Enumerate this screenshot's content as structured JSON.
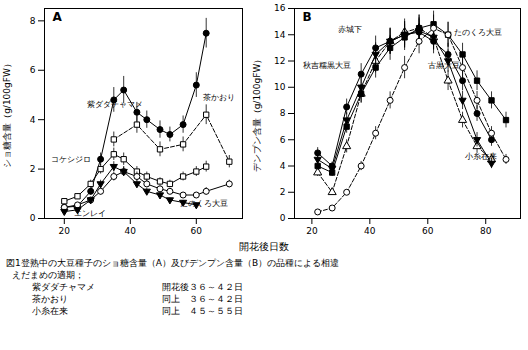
{
  "chart_data": [
    {
      "type": "line",
      "title": "A",
      "ylabel": "ショ糖含量（g/100gFW）",
      "xlim": [
        14,
        74
      ],
      "ylim": [
        0,
        8.5
      ],
      "xticks": [
        20,
        40,
        60
      ],
      "yticks": [
        0,
        2,
        4,
        6,
        8
      ],
      "series": [
        {
          "name": "紫ダダチャマメ",
          "color": "black",
          "marker": "filled_circle",
          "line_style": "solid",
          "x": [
            20,
            24,
            28,
            31,
            35,
            38,
            42,
            45,
            49,
            52,
            56,
            60,
            63
          ],
          "values": [
            0.45,
            0.5,
            1.1,
            2.4,
            4.8,
            5.2,
            4.3,
            4.0,
            3.6,
            3.4,
            3.8,
            5.4,
            7.5
          ],
          "yerr": [
            0.1,
            0.1,
            0.15,
            0.25,
            0.5,
            0.55,
            0.4,
            0.35,
            0.35,
            0.3,
            0.35,
            0.5,
            0.6
          ]
        },
        {
          "name": "茶かおり",
          "color": "black",
          "marker": "open_square",
          "line_style": "dashed",
          "x": [
            35,
            42,
            49,
            56,
            63,
            70
          ],
          "values": [
            3.2,
            3.8,
            2.8,
            3.0,
            4.2,
            2.3
          ],
          "yerr": [
            0.3,
            0.35,
            0.3,
            0.3,
            0.4,
            0.25
          ]
        },
        {
          "name": "コケシジロ",
          "color": "black",
          "marker": "open_square",
          "line_style": "solid",
          "x": [
            20,
            24,
            28,
            31,
            35,
            38,
            42,
            45,
            49,
            52,
            56,
            60,
            63
          ],
          "values": [
            0.7,
            0.9,
            1.4,
            2.0,
            2.6,
            2.4,
            1.9,
            1.7,
            1.5,
            1.4,
            1.7,
            1.9,
            2.1
          ],
          "yerr": [
            0.1,
            0.1,
            0.15,
            0.2,
            0.25,
            0.25,
            0.2,
            0.18,
            0.15,
            0.15,
            0.18,
            0.2,
            0.22
          ]
        },
        {
          "name": "たのくろ大豆",
          "color": "black",
          "marker": "open_circle",
          "line_style": "solid",
          "x": [
            20,
            24,
            28,
            31,
            35,
            38,
            42,
            45,
            49,
            52,
            56,
            60,
            63,
            70
          ],
          "values": [
            0.45,
            0.55,
            0.75,
            1.1,
            1.7,
            1.9,
            1.7,
            1.4,
            1.2,
            1.1,
            0.95,
            0.95,
            1.1,
            1.4
          ],
          "yerr": [
            0.08,
            0.08,
            0.1,
            0.15,
            0.18,
            0.2,
            0.18,
            0.15,
            0.12,
            0.12,
            0.1,
            0.1,
            0.15,
            0.15
          ]
        },
        {
          "name": "エンレイ",
          "color": "black",
          "marker": "filled_triangle_down",
          "line_style": "solid",
          "x": [
            20,
            24,
            28,
            31,
            35,
            38,
            42,
            45,
            49,
            52,
            56,
            60
          ],
          "values": [
            0.28,
            0.35,
            0.75,
            1.4,
            2.1,
            1.9,
            1.4,
            1.1,
            0.95,
            0.75,
            0.65,
            0.55
          ],
          "yerr": [
            0.05,
            0.05,
            0.08,
            0.15,
            0.2,
            0.18,
            0.15,
            0.12,
            0.1,
            0.08,
            0.08,
            0.07
          ]
        }
      ],
      "annotations": [
        {
          "text": "紫ダダチャマメ",
          "x": 27,
          "y": 4.5
        },
        {
          "text": "茶かおり",
          "x": 62,
          "y": 4.8
        },
        {
          "text": "コケシジロ",
          "x": 16,
          "y": 2.3
        },
        {
          "text": "たのくろ大豆",
          "x": 55,
          "y": 0.5
        },
        {
          "text": "エンレイ",
          "x": 23,
          "y": 0.1
        }
      ]
    },
    {
      "type": "line",
      "title": "B",
      "ylabel": "デンプン含量（g/100gFW）",
      "xlim": [
        14,
        92
      ],
      "ylim": [
        0,
        16
      ],
      "xticks": [
        20,
        40,
        60,
        80
      ],
      "yticks": [
        0,
        2,
        4,
        6,
        8,
        10,
        12,
        14,
        16
      ],
      "series": [
        {
          "name": "赤城下",
          "color": "black",
          "marker": "open_triangle_up",
          "line_style": "dashed",
          "x": [
            22,
            27,
            32,
            37,
            42,
            47,
            52,
            57,
            62,
            67,
            72,
            77,
            82
          ],
          "values": [
            3.5,
            2.0,
            5.5,
            9.5,
            12.0,
            13.5,
            14.2,
            14.5,
            13.8,
            10.5,
            7.5,
            5.5,
            4.5
          ],
          "yerr": [
            0.3,
            0.2,
            0.5,
            0.7,
            0.9,
            1.0,
            1.0,
            1.0,
            0.95,
            0.75,
            0.6,
            0.5,
            0.4
          ]
        },
        {
          "name": "秋吉糯黒大豆",
          "color": "black",
          "marker": "filled_circle",
          "line_style": "solid",
          "x": [
            22,
            27,
            32,
            37,
            42,
            47,
            52,
            57,
            62,
            67,
            72,
            77,
            82
          ],
          "values": [
            5.0,
            4.0,
            8.5,
            11.0,
            13.0,
            13.5,
            14.0,
            14.2,
            13.5,
            12.5,
            10.5,
            8.0,
            6.0
          ],
          "yerr": [
            0.4,
            0.3,
            0.6,
            0.8,
            0.9,
            1.0,
            1.0,
            1.0,
            0.95,
            0.85,
            0.75,
            0.6,
            0.5
          ]
        },
        {
          "name": "たのくろ大豆",
          "color": "black",
          "marker": "filled_square",
          "line_style": "solid",
          "x": [
            22,
            27,
            32,
            37,
            42,
            47,
            52,
            57,
            62,
            67,
            72,
            77,
            82,
            87
          ],
          "values": [
            4.0,
            3.5,
            7.0,
            9.5,
            11.5,
            13.0,
            13.8,
            14.5,
            14.8,
            14.0,
            12.5,
            10.5,
            9.0,
            7.5
          ],
          "yerr": [
            0.3,
            0.3,
            0.5,
            0.7,
            0.8,
            0.95,
            1.0,
            1.0,
            1.0,
            0.95,
            0.85,
            0.75,
            0.65,
            0.6
          ]
        },
        {
          "name": "古黒大豆",
          "color": "black",
          "marker": "filled_triangle_down",
          "line_style": "solid",
          "x": [
            22,
            27,
            32,
            37,
            42,
            47,
            52,
            57,
            62,
            67,
            72,
            77,
            82
          ],
          "values": [
            4.5,
            3.8,
            7.5,
            10.0,
            12.5,
            13.5,
            14.0,
            14.3,
            13.8,
            12.0,
            9.0,
            6.0,
            4.2
          ],
          "yerr": [
            0.35,
            0.3,
            0.55,
            0.75,
            0.88,
            0.95,
            1.0,
            1.0,
            0.95,
            0.85,
            0.7,
            0.55,
            0.4
          ]
        },
        {
          "name": "小糸在来",
          "color": "black",
          "marker": "open_circle",
          "line_style": "dashed",
          "x": [
            22,
            27,
            32,
            37,
            42,
            47,
            52,
            57,
            62,
            67,
            72,
            77,
            82,
            87
          ],
          "values": [
            0.5,
            0.8,
            2.0,
            4.0,
            6.5,
            9.0,
            11.5,
            13.5,
            14.5,
            14.0,
            11.5,
            9.0,
            6.5,
            4.5
          ],
          "yerr": [
            0.1,
            0.1,
            0.2,
            0.35,
            0.5,
            0.65,
            0.85,
            0.95,
            1.0,
            0.95,
            0.82,
            0.68,
            0.5,
            0.38
          ]
        }
      ],
      "annotations": [
        {
          "text": "赤城下",
          "x": 29,
          "y": 14.2
        },
        {
          "text": "秋吉糯黒大豆",
          "x": 17,
          "y": 11.5
        },
        {
          "text": "たのくろ大豆",
          "x": 69,
          "y": 14.0
        },
        {
          "text": "古黒大豆",
          "x": 60,
          "y": 11.5
        },
        {
          "text": "小糸在来",
          "x": 73,
          "y": 4.5
        }
      ]
    }
  ],
  "xlabel": "開花後日数",
  "caption": [
    [
      "図1登熟中の大豆種子のショ糖含量（A）及びデンプン含量（B）の品種による相違"
    ],
    [
      "えだまめの適期；"
    ],
    [
      "紫ダダチャマメ",
      "開花後３６～４２日"
    ],
    [
      "茶かおり",
      "同上　３６～４２日"
    ],
    [
      "小糸在来",
      "同上　４５～５５日"
    ]
  ]
}
